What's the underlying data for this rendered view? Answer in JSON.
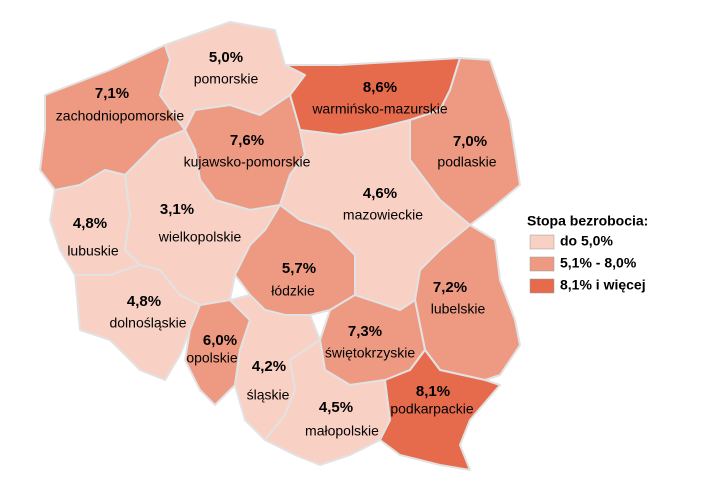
{
  "chart_data": {
    "type": "choropleth",
    "categories": [
      "zachodniopomorskie",
      "pomorskie",
      "warmińsko-mazurskie",
      "podlaskie",
      "kujawsko-pomorskie",
      "mazowieckie",
      "lubuskie",
      "wielkopolskie",
      "łódzkie",
      "lubelskie",
      "dolnośląskie",
      "opolskie",
      "świętokrzyskie",
      "śląskie",
      "małopolskie",
      "podkarpackie"
    ],
    "values": [
      7.1,
      5.0,
      8.6,
      7.0,
      7.6,
      4.6,
      4.8,
      3.1,
      5.7,
      7.2,
      4.8,
      6.0,
      7.3,
      4.2,
      4.5,
      8.1
    ],
    "value_labels": [
      "7,1%",
      "5,0%",
      "8,6%",
      "7,0%",
      "7,6%",
      "4,6%",
      "4,8%",
      "3,1%",
      "5,7%",
      "7,2%",
      "4,8%",
      "6,0%",
      "7,3%",
      "4,2%",
      "4,5%",
      "8,1%"
    ],
    "colors": [
      "#ee9a82",
      "#f9d0c4",
      "#e66b4d",
      "#ee9a82",
      "#ee9a82",
      "#f9d0c4",
      "#f9d0c4",
      "#f9d0c4",
      "#ee9a82",
      "#ee9a82",
      "#f9d0c4",
      "#ee9a82",
      "#ee9a82",
      "#f9d0c4",
      "#f9d0c4",
      "#e66b4d"
    ],
    "legend": {
      "title": "Stopa bezrobocia:",
      "entries": [
        {
          "label": "do 5,0%",
          "color": "#f9d0c4"
        },
        {
          "label": "5,1% - 8,0%",
          "color": "#ee9a82"
        },
        {
          "label": "8,1% i więcej",
          "color": "#e66b4d"
        }
      ]
    }
  }
}
